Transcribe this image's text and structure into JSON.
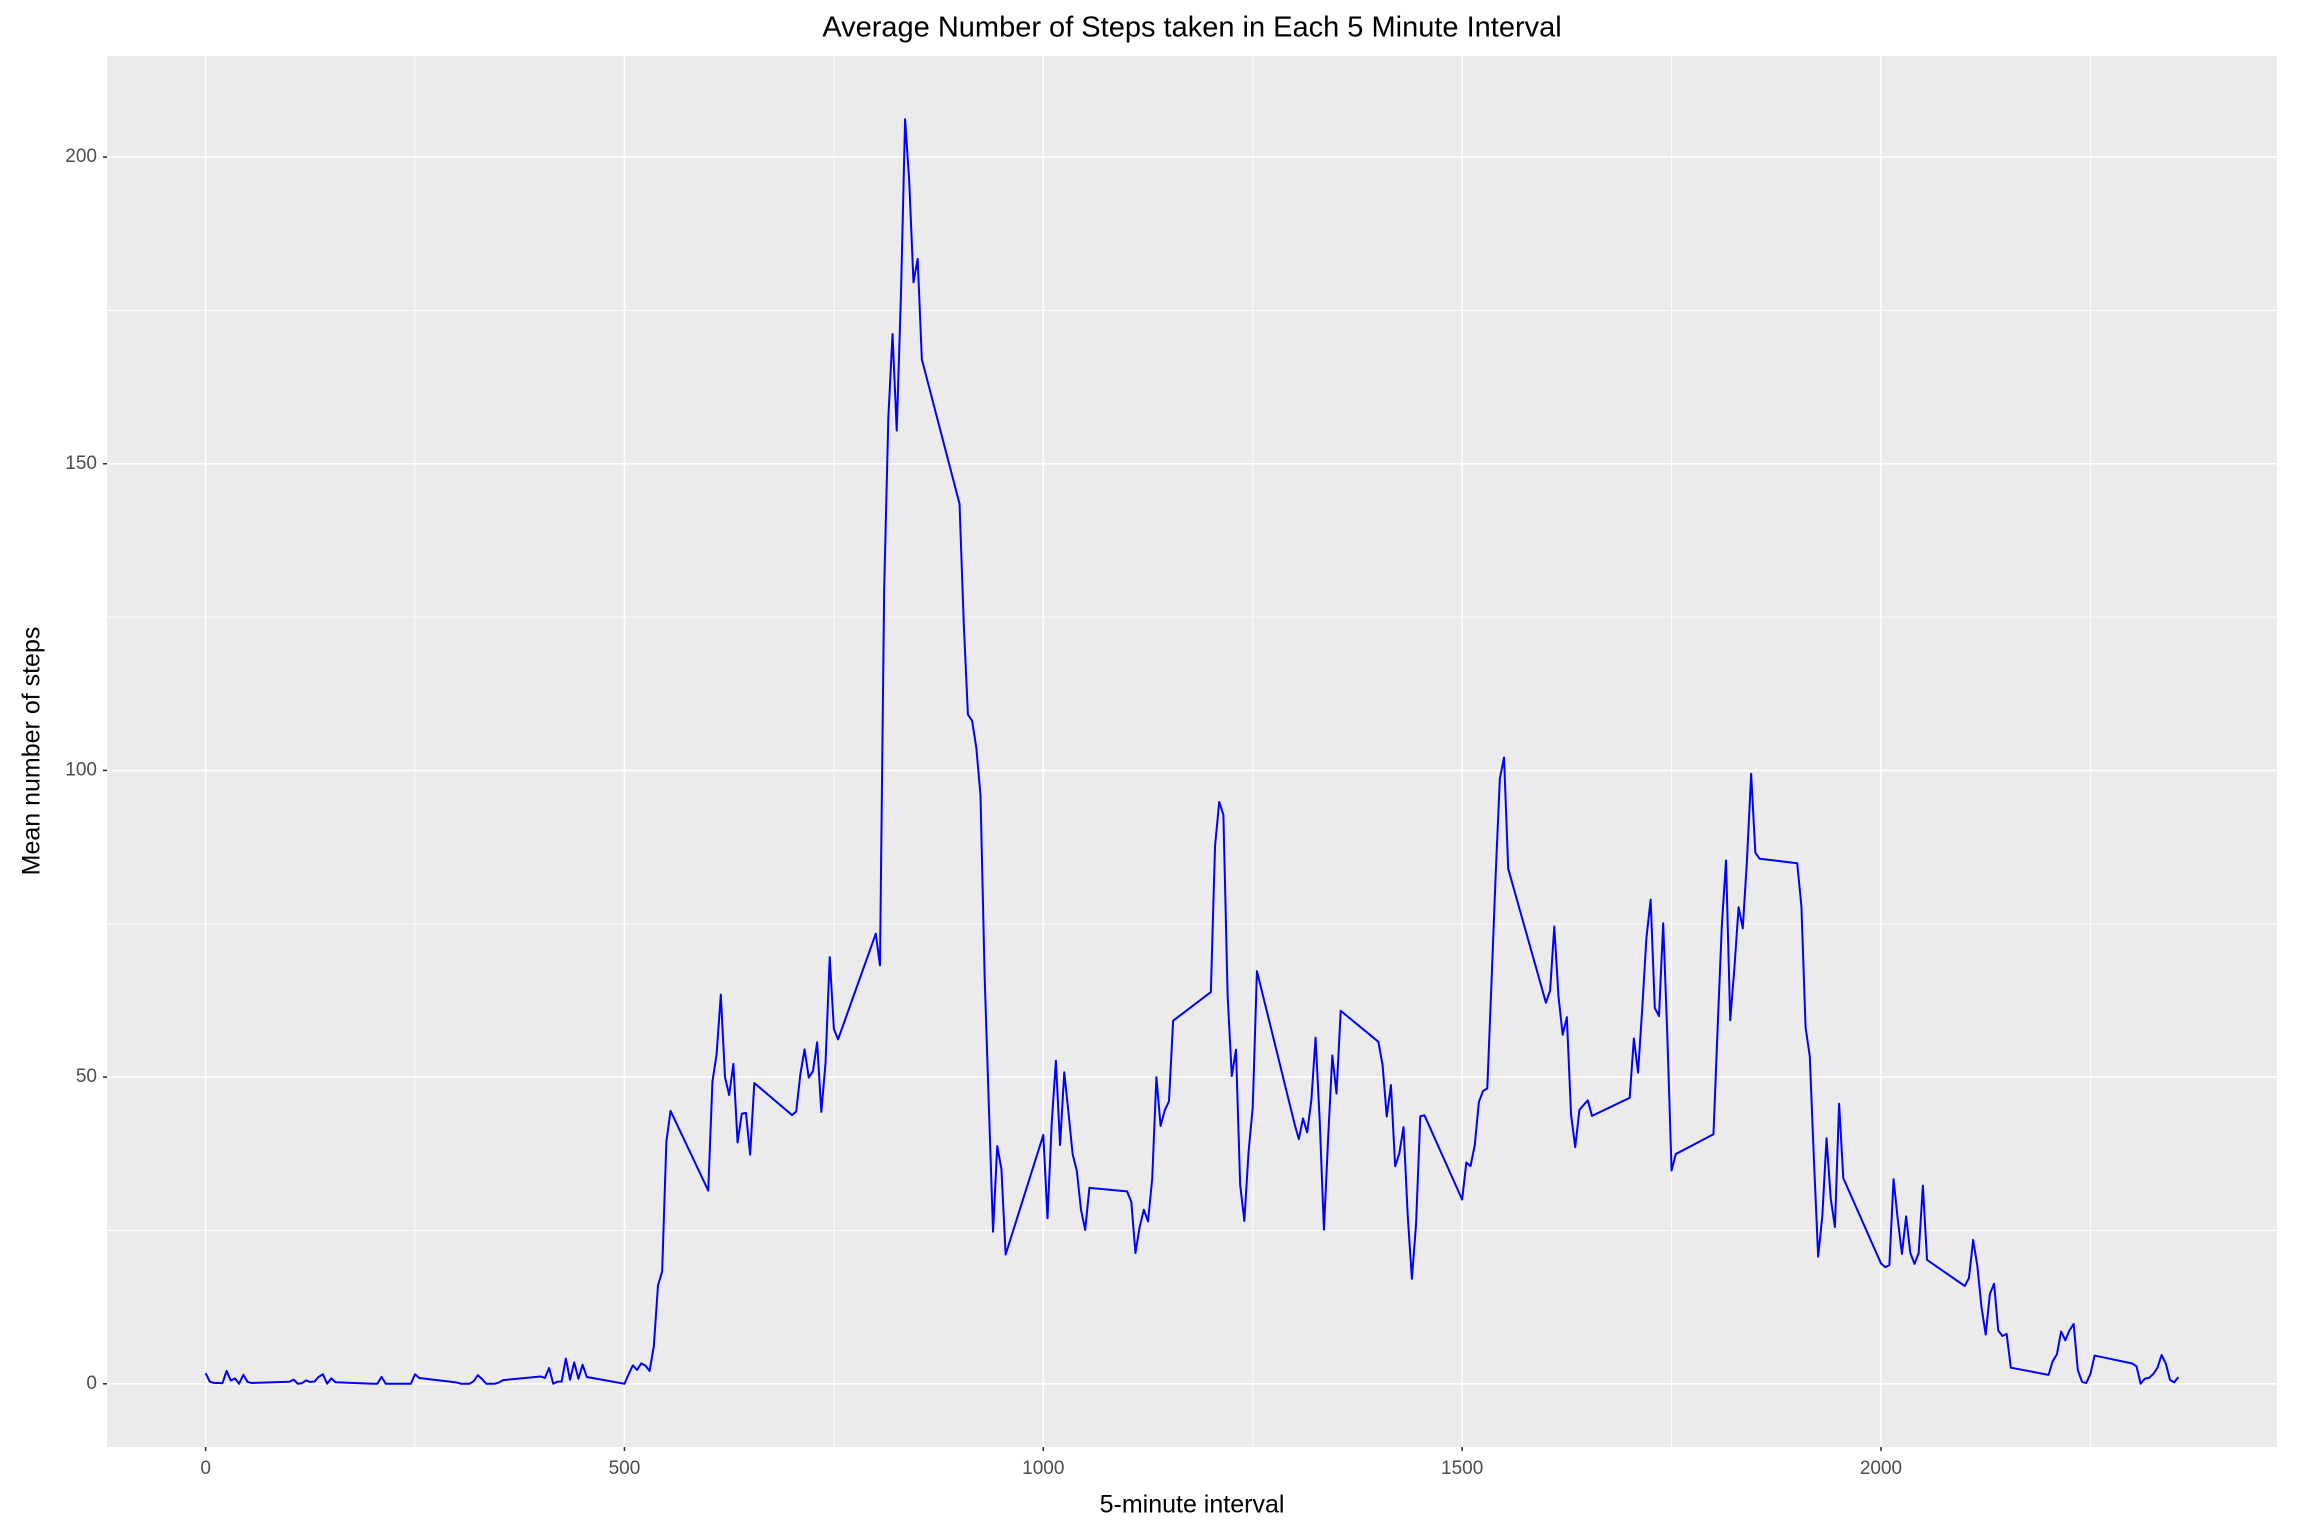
{
  "chart_data": {
    "type": "line",
    "title": "Average Number of Steps taken in Each 5 Minute Interval",
    "x_label": "5-minute interval",
    "y_label": "Mean number of steps",
    "xlim": [
      -117.75,
      2472.75
    ],
    "ylim": [
      -10.31,
      216.48
    ],
    "xticks": [
      0,
      500,
      1000,
      1500,
      2000
    ],
    "yticks": [
      0,
      50,
      100,
      150,
      200
    ],
    "grid": true,
    "x": [
      0,
      5,
      10,
      15,
      20,
      25,
      30,
      35,
      40,
      45,
      50,
      55,
      100,
      105,
      110,
      115,
      120,
      125,
      130,
      135,
      140,
      145,
      150,
      155,
      200,
      205,
      210,
      215,
      220,
      225,
      230,
      235,
      240,
      245,
      250,
      255,
      300,
      305,
      310,
      315,
      320,
      325,
      330,
      335,
      340,
      345,
      350,
      355,
      400,
      405,
      410,
      415,
      420,
      425,
      430,
      435,
      440,
      445,
      450,
      455,
      500,
      505,
      510,
      515,
      520,
      525,
      530,
      535,
      540,
      545,
      550,
      555,
      600,
      605,
      610,
      615,
      620,
      625,
      630,
      635,
      640,
      645,
      650,
      655,
      700,
      705,
      710,
      715,
      720,
      725,
      730,
      735,
      740,
      745,
      750,
      755,
      800,
      805,
      810,
      815,
      820,
      825,
      830,
      835,
      840,
      845,
      850,
      855,
      900,
      905,
      910,
      915,
      920,
      925,
      930,
      935,
      940,
      945,
      950,
      955,
      1000,
      1005,
      1010,
      1015,
      1020,
      1025,
      1030,
      1035,
      1040,
      1045,
      1050,
      1055,
      1100,
      1105,
      1110,
      1115,
      1120,
      1125,
      1130,
      1135,
      1140,
      1145,
      1150,
      1155,
      1200,
      1205,
      1210,
      1215,
      1220,
      1225,
      1230,
      1235,
      1240,
      1245,
      1250,
      1255,
      1300,
      1305,
      1310,
      1315,
      1320,
      1325,
      1330,
      1335,
      1340,
      1345,
      1350,
      1355,
      1400,
      1405,
      1410,
      1415,
      1420,
      1425,
      1430,
      1435,
      1440,
      1445,
      1450,
      1455,
      1500,
      1505,
      1510,
      1515,
      1520,
      1525,
      1530,
      1535,
      1540,
      1545,
      1550,
      1555,
      1600,
      1605,
      1610,
      1615,
      1620,
      1625,
      1630,
      1635,
      1640,
      1645,
      1650,
      1655,
      1700,
      1705,
      1710,
      1715,
      1720,
      1725,
      1730,
      1735,
      1740,
      1745,
      1750,
      1755,
      1800,
      1805,
      1810,
      1815,
      1820,
      1825,
      1830,
      1835,
      1840,
      1845,
      1850,
      1855,
      1900,
      1905,
      1910,
      1915,
      1920,
      1925,
      1930,
      1935,
      1940,
      1945,
      1950,
      1955,
      2000,
      2005,
      2010,
      2015,
      2020,
      2025,
      2030,
      2035,
      2040,
      2045,
      2050,
      2055,
      2100,
      2105,
      2110,
      2115,
      2120,
      2125,
      2130,
      2135,
      2140,
      2145,
      2150,
      2155,
      2200,
      2205,
      2210,
      2215,
      2220,
      2225,
      2230,
      2235,
      2240,
      2245,
      2250,
      2255,
      2300,
      2305,
      2310,
      2315,
      2320,
      2325,
      2330,
      2335,
      2340,
      2345,
      2350,
      2355
    ],
    "series": [
      {
        "color": "#0000FF",
        "values": [
          1.72,
          0.34,
          0.13,
          0.15,
          0.08,
          2.09,
          0.53,
          0.87,
          0,
          1.47,
          0.3,
          0.13,
          0.32,
          0.68,
          0,
          0.09,
          0.55,
          0.28,
          0.38,
          1.13,
          1.55,
          0,
          0.89,
          0.25,
          0,
          0,
          1.13,
          0,
          0,
          0,
          0,
          0,
          0,
          0,
          1.55,
          0.94,
          0.2,
          0,
          0,
          0,
          0.42,
          1.4,
          0.75,
          0,
          0,
          0,
          0.2,
          0.6,
          1.19,
          0.95,
          2.57,
          0,
          0.34,
          0.36,
          4.11,
          0.66,
          3.49,
          0.83,
          3.11,
          1.11,
          0,
          1.57,
          3,
          2.25,
          3.32,
          2.96,
          2.09,
          6.06,
          16.02,
          18.34,
          39.45,
          44.49,
          31.49,
          49.26,
          53.77,
          63.45,
          49.96,
          47.08,
          52.15,
          39.34,
          44.02,
          44.17,
          37.36,
          49.04,
          43.81,
          44.38,
          50.51,
          54.51,
          49.92,
          50.98,
          55.68,
          44.32,
          52.26,
          69.55,
          57.85,
          56.15,
          73.38,
          68.21,
          129.43,
          157.53,
          171.15,
          155.4,
          177.3,
          206.17,
          195.92,
          179.57,
          183.4,
          167.02,
          143.45,
          124.04,
          109.11,
          108.11,
          103.72,
          95.97,
          66.21,
          45.23,
          24.79,
          38.75,
          34.98,
          21.06,
          40.57,
          26.98,
          42.42,
          52.66,
          38.92,
          50.79,
          44.28,
          37.42,
          34.7,
          28.34,
          25.09,
          31.94,
          31.36,
          29.68,
          21.32,
          25.55,
          28.38,
          26.47,
          33.43,
          49.98,
          42.04,
          44.6,
          46.04,
          59.19,
          63.87,
          87.7,
          94.85,
          92.77,
          63.4,
          50.17,
          54.47,
          32.42,
          26.53,
          37.74,
          45.06,
          67.28,
          42.34,
          39.88,
          43.26,
          40.98,
          46.25,
          56.43,
          42.75,
          25.13,
          39.96,
          53.55,
          47.32,
          60.81,
          55.75,
          51.96,
          43.58,
          48.7,
          35.47,
          37.55,
          41.85,
          27.51,
          17.11,
          26.08,
          43.62,
          43.77,
          30.02,
          36.08,
          35.49,
          38.85,
          45.96,
          47.75,
          48.13,
          65.32,
          82.91,
          98.66,
          102.11,
          83.96,
          62.13,
          64.13,
          74.55,
          63.17,
          56.91,
          59.77,
          43.87,
          38.57,
          44.66,
          45.45,
          46.21,
          43.68,
          46.62,
          56.3,
          50.72,
          61.23,
          72.72,
          78.94,
          61.26,
          59.94,
          75.09,
          56.51,
          34.77,
          37.45,
          40.68,
          58.02,
          74.7,
          85.32,
          59.26,
          67.77,
          77.7,
          74.25,
          85.34,
          99.45,
          86.58,
          85.6,
          84.87,
          77.83,
          58.04,
          53.36,
          36.32,
          20.72,
          27.4,
          40.02,
          30.21,
          25.55,
          45.66,
          33.53,
          19.62,
          19.02,
          19.34,
          33.34,
          26.81,
          21.17,
          27.3,
          21.34,
          19.55,
          21.32,
          32.3,
          20.19,
          15.94,
          17.23,
          23.45,
          19.25,
          12.45,
          8.02,
          14.66,
          16.3,
          8.68,
          7.79,
          8.13,
          2.62,
          1.45,
          3.68,
          4.81,
          8.51,
          7.08,
          8.7,
          9.75,
          2.21,
          0.32,
          0.11,
          1.6,
          4.6,
          3.3,
          2.85,
          0,
          0.83,
          0.96,
          1.58,
          2.6,
          4.7,
          3.3,
          0.64,
          0.23,
          1.08
        ]
      }
    ]
  }
}
